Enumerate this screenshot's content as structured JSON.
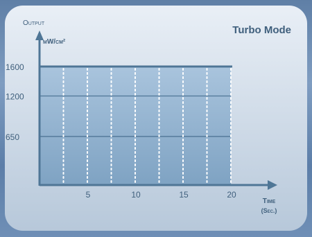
{
  "chart_data": {
    "type": "area",
    "title": "Turbo Mode",
    "ylabel": "Output",
    "yunit": "mW/cm²",
    "xlabel": "Time",
    "xunit": "(Sec.)",
    "x": [
      0,
      20
    ],
    "values": [
      1600,
      1600
    ],
    "xticks": [
      5,
      10,
      15,
      20
    ],
    "yticks": [
      650,
      1200,
      1600
    ],
    "xlim": [
      0,
      22
    ],
    "ylim": [
      0,
      1600
    ],
    "grid": true,
    "colors": {
      "fill_top": "#a9c4dd",
      "fill_bottom": "#7fa3c3",
      "axis": "#4f7696",
      "card": "#dfe8f2"
    }
  }
}
